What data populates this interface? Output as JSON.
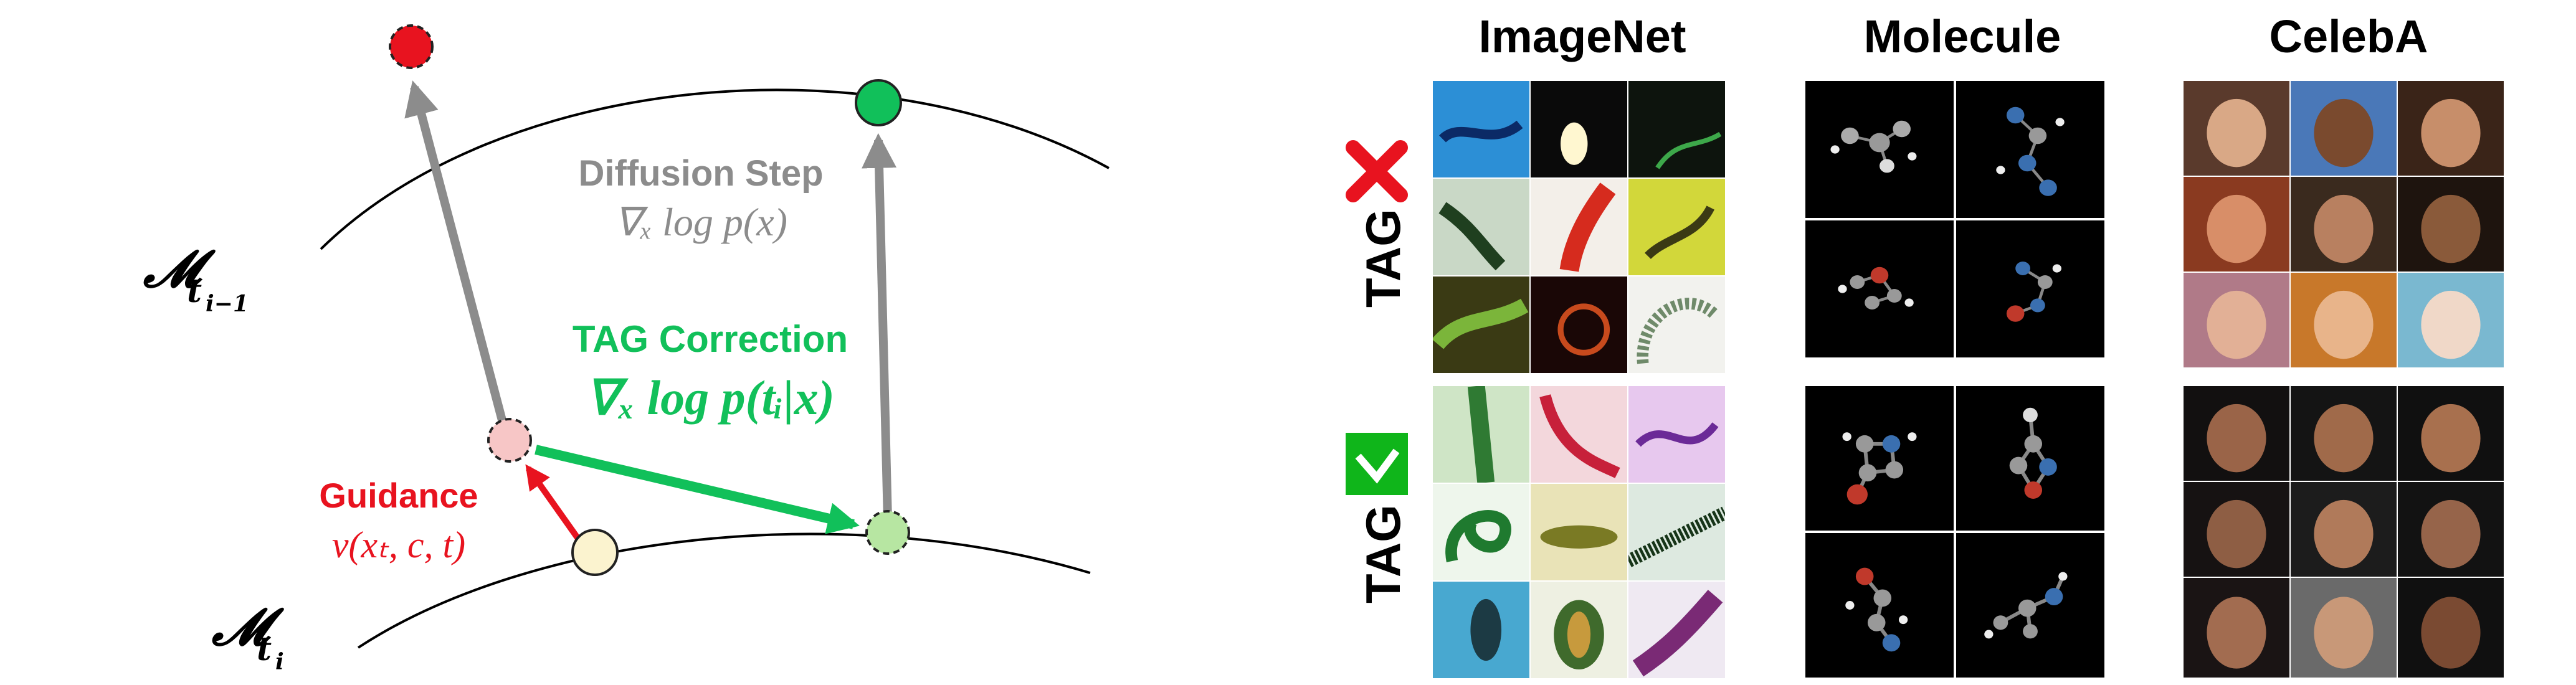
{
  "diagram": {
    "manifold_upper_label": "𝓜",
    "manifold_upper_sub": "t",
    "manifold_upper_subsub": "i−1",
    "manifold_lower_label": "𝓜",
    "manifold_lower_sub": "t",
    "manifold_lower_subsub": "i",
    "diffusion_title": "Diffusion Step",
    "diffusion_formula": "∇ₓ log p(x)",
    "tag_title": "TAG Correction",
    "tag_formula": "∇ₓ log p(tᵢ|x)",
    "guidance_title": "Guidance",
    "guidance_formula": "v(xₜ, c, t)",
    "colors": {
      "red": "#e8131f",
      "green": "#11c05a",
      "gray": "#8c8c8c",
      "pink_node": "#f7c6c6",
      "yellow_node": "#fbf3cf",
      "lightgreen_node": "#b7e6a2"
    }
  },
  "grid": {
    "columns": [
      "ImageNet",
      "Molecule",
      "CelebA"
    ],
    "rows": [
      {
        "label": "TAG",
        "status_icon": "cross-icon",
        "status_color": "#e8131f"
      },
      {
        "label": "TAG",
        "status_icon": "check-icon",
        "status_color": "#0fb51a"
      }
    ]
  }
}
